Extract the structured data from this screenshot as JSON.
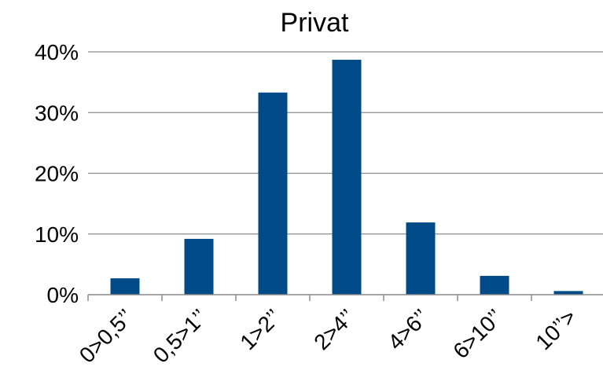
{
  "chart_data": {
    "type": "bar",
    "title": "Privat",
    "xlabel": "",
    "ylabel": "",
    "categories": [
      "0>0,5’’",
      "0,5>1’’",
      "1>2’’",
      "2>4’’",
      "4>6’’",
      "6>10’’",
      "10’’>"
    ],
    "values": [
      2.7,
      9.2,
      33.3,
      38.7,
      11.9,
      3.1,
      0.6
    ],
    "ylim": [
      0,
      40
    ],
    "yticks": [
      0,
      10,
      20,
      30,
      40
    ],
    "ytick_labels": [
      "0%",
      "10%",
      "20%",
      "30%",
      "40%"
    ],
    "grid": true,
    "legend": "none",
    "bar_color": "#004b87"
  }
}
